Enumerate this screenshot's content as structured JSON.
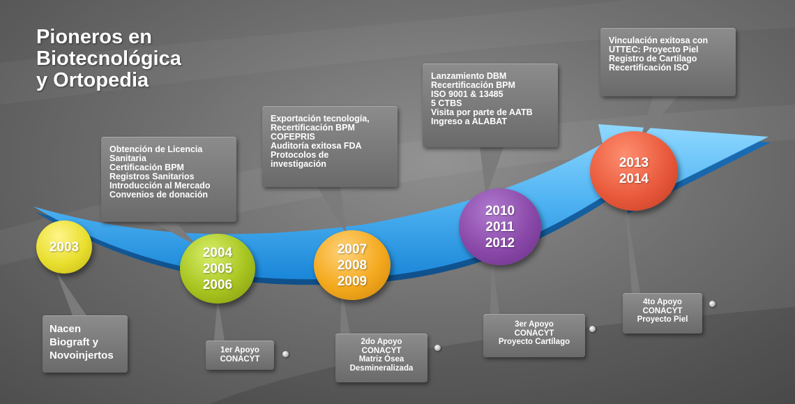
{
  "title": {
    "lines": [
      "Pioneros en",
      "Biotecnológica",
      "y Ortopedia"
    ]
  },
  "milestones": [
    {
      "years": [
        "2003"
      ],
      "color": "#e9df2e",
      "top_lines": [],
      "bottom_lines": [
        "Nacen",
        "Biograft y",
        "Novoinjertos"
      ]
    },
    {
      "years": [
        "2004",
        "2005",
        "2006"
      ],
      "color": "#a8c41f",
      "top_lines": [
        "Obtención de Licencia",
        "Sanitaria",
        "Certificación BPM",
        "Registros Sanitarios",
        "Introducción al Mercado",
        "Convenios de donación"
      ],
      "bottom_lines": [
        "1er Apoyo",
        "CONACYT"
      ]
    },
    {
      "years": [
        "2007",
        "2008",
        "2009"
      ],
      "color": "#f4a91e",
      "top_lines": [
        "Exportación tecnología,",
        "Recertificación BPM",
        "COFEPRIS",
        "Auditoría exitosa FDA",
        "Protocolos de",
        "investigación"
      ],
      "bottom_lines": [
        "2do Apoyo",
        "CONACYT",
        "Matriz Ósea",
        "Desmineralizada"
      ]
    },
    {
      "years": [
        "2010",
        "2011",
        "2012"
      ],
      "color": "#8a49a8",
      "top_lines": [
        "Lanzamiento DBM",
        "Recertificación BPM",
        "ISO 9001 & 13485",
        "5 CTBS",
        "Visita por parte de AATB",
        "Ingreso a ALABAT"
      ],
      "bottom_lines": [
        "3er Apoyo",
        "CONACYT",
        "Proyecto Cartílago"
      ]
    },
    {
      "years": [
        "2013",
        "2014"
      ],
      "color": "#e95a3c",
      "top_lines": [
        "Vinculación exitosa con",
        "UTTEC: Proyecto Piel",
        "Registro de Cartilago",
        "Recertificación ISO"
      ],
      "bottom_lines": [
        "4to Apoyo",
        "CONACYT",
        "Proyecto Piel"
      ]
    }
  ],
  "colors": {
    "arrow_light": "#7fd0ff",
    "arrow_dark": "#1f8fe0",
    "box": "#7a7a7a",
    "text": "#ffffff"
  }
}
